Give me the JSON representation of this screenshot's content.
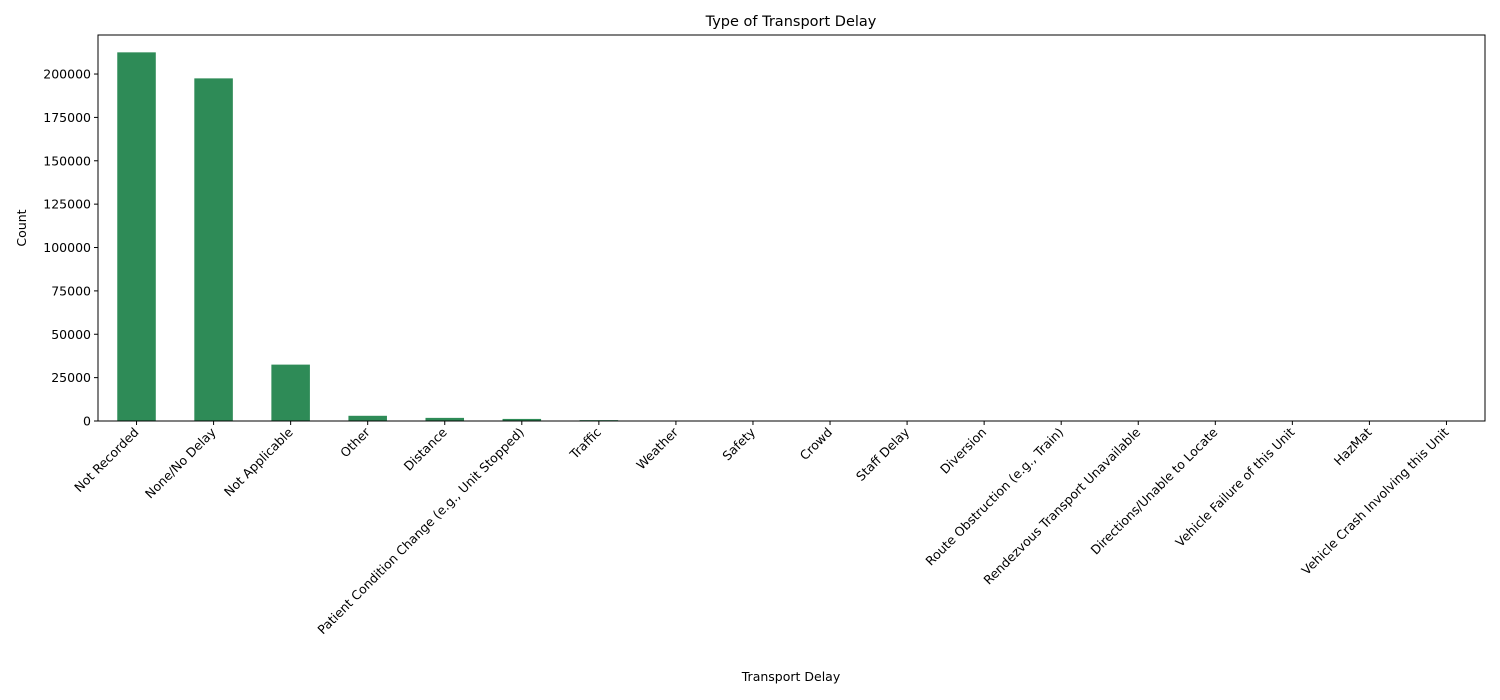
{
  "chart_data": {
    "type": "bar",
    "title": "Type of Transport Delay",
    "xlabel": "Transport Delay",
    "ylabel": "Count",
    "categories": [
      "Not Recorded",
      "None/No Delay",
      "Not Applicable",
      "Other",
      "Distance",
      "Patient Condition Change (e.g., Unit Stopped)",
      "Traffic",
      "Weather",
      "Safety",
      "Crowd",
      "Staff Delay",
      "Diversion",
      "Route Obstruction (e.g., Train)",
      "Rendezvous Transport Unavailable",
      "Directions/Unable to Locate",
      "Vehicle Failure of this Unit",
      "HazMat",
      "Vehicle Crash Involving this Unit"
    ],
    "values": [
      212500,
      197500,
      32500,
      3000,
      1800,
      1200,
      500,
      150,
      120,
      80,
      60,
      40,
      30,
      20,
      15,
      10,
      5,
      3
    ],
    "ylim": [
      0,
      222500
    ],
    "yticks": [
      0,
      25000,
      50000,
      75000,
      100000,
      125000,
      150000,
      175000,
      200000
    ],
    "bar_color": "#2e8b57",
    "grid": false,
    "legend": "none"
  }
}
